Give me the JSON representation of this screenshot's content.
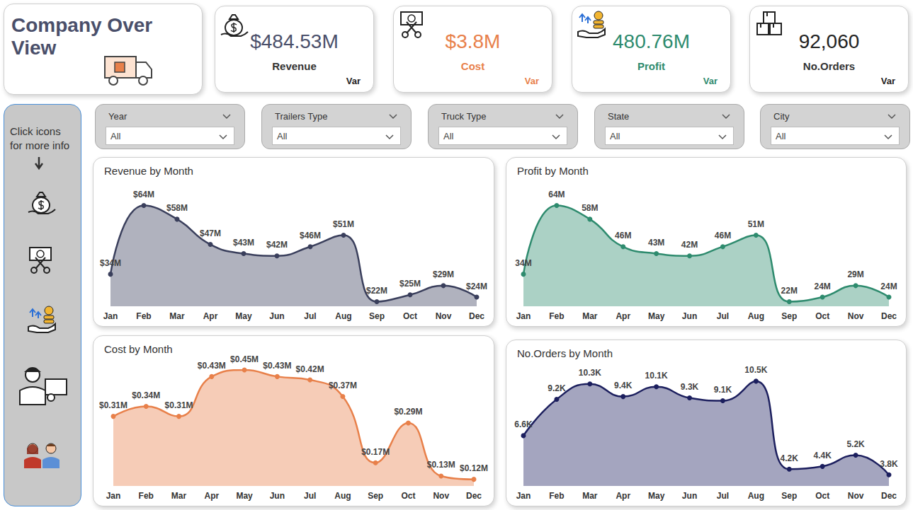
{
  "header": {
    "title": "Company Over View"
  },
  "kpis": [
    {
      "value": "$484.53M",
      "label": "Revenue",
      "note": "Var",
      "color": "#4a4f6a"
    },
    {
      "value": "$3.8M",
      "label": "Cost",
      "note": "Var",
      "color": "#e8804a"
    },
    {
      "value": "480.76M",
      "label": "Profit",
      "note": "Var",
      "color": "#2e8b6e"
    },
    {
      "value": "92,060",
      "label": "No.Orders",
      "note": "Var",
      "color": "#222222"
    }
  ],
  "filters": [
    {
      "label": "Year",
      "selection": "All"
    },
    {
      "label": "Trailers Type",
      "selection": "All"
    },
    {
      "label": "Truck Type",
      "selection": "All"
    },
    {
      "label": "State",
      "selection": "All"
    },
    {
      "label": "City",
      "selection": "All"
    }
  ],
  "sidebar": {
    "text": "Click icons for more info"
  },
  "chart_data": [
    {
      "type": "line",
      "title": "Revenue by Month",
      "categories": [
        "Jan",
        "Feb",
        "Mar",
        "Apr",
        "May",
        "Jun",
        "Jul",
        "Aug",
        "Sep",
        "Oct",
        "Nov",
        "Dec"
      ],
      "values": [
        34000000,
        64000000,
        58000000,
        47000000,
        43000000,
        42000000,
        46000000,
        51000000,
        22000000,
        25000000,
        29000000,
        24000000
      ],
      "value_labels": [
        "$34M",
        "$64M",
        "$58M",
        "$47M",
        "$43M",
        "$42M",
        "$46M",
        "$51M",
        "$22M",
        "$25M",
        "$29M",
        "$24M"
      ],
      "color": "#3a3f5c",
      "data_labels": true,
      "tick_labels": "x",
      "grid": false
    },
    {
      "type": "line",
      "title": "Profit by Month",
      "categories": [
        "Jan",
        "Feb",
        "Mar",
        "Apr",
        "May",
        "Jun",
        "Jul",
        "Aug",
        "Sep",
        "Oct",
        "Nov",
        "Dec"
      ],
      "values": [
        34000000,
        64000000,
        58000000,
        46000000,
        43000000,
        42000000,
        46000000,
        51000000,
        22000000,
        24000000,
        29000000,
        24000000
      ],
      "value_labels": [
        "34M",
        "64M",
        "58M",
        "46M",
        "43M",
        "42M",
        "46M",
        "51M",
        "22M",
        "24M",
        "29M",
        "24M"
      ],
      "color": "#2e8b6e",
      "data_labels": true,
      "tick_labels": "x",
      "grid": false
    },
    {
      "type": "line",
      "title": "Cost by Month",
      "categories": [
        "Jan",
        "Feb",
        "Mar",
        "Apr",
        "May",
        "Jun",
        "Jul",
        "Aug",
        "Sep",
        "Oct",
        "Nov",
        "Dec"
      ],
      "values": [
        310000,
        340000,
        310000,
        430000,
        450000,
        430000,
        420000,
        370000,
        170000,
        290000,
        130000,
        120000
      ],
      "value_labels": [
        "$0.31M",
        "$0.34M",
        "$0.31M",
        "$0.43M",
        "$0.45M",
        "$0.43M",
        "$0.42M",
        "$0.37M",
        "$0.17M",
        "$0.29M",
        "$0.13M",
        "$0.12M"
      ],
      "color": "#e8804a",
      "data_labels": true,
      "tick_labels": "x",
      "grid": false
    },
    {
      "type": "line",
      "title": "No.Orders by Month",
      "categories": [
        "Jan",
        "Feb",
        "Mar",
        "Apr",
        "May",
        "Jun",
        "Jul",
        "Aug",
        "Sep",
        "Oct",
        "Nov",
        "Dec"
      ],
      "values": [
        6600,
        9200,
        10300,
        9400,
        10100,
        9300,
        9100,
        10500,
        4200,
        4400,
        5200,
        3800
      ],
      "value_labels": [
        "6.6K",
        "9.2K",
        "10.3K",
        "9.4K",
        "10.1K",
        "9.3K",
        "9.1K",
        "10.5K",
        "4.2K",
        "4.4K",
        "5.2K",
        "3.8K"
      ],
      "color": "#1c1f5e",
      "data_labels": true,
      "tick_labels": "x",
      "grid": false
    }
  ]
}
